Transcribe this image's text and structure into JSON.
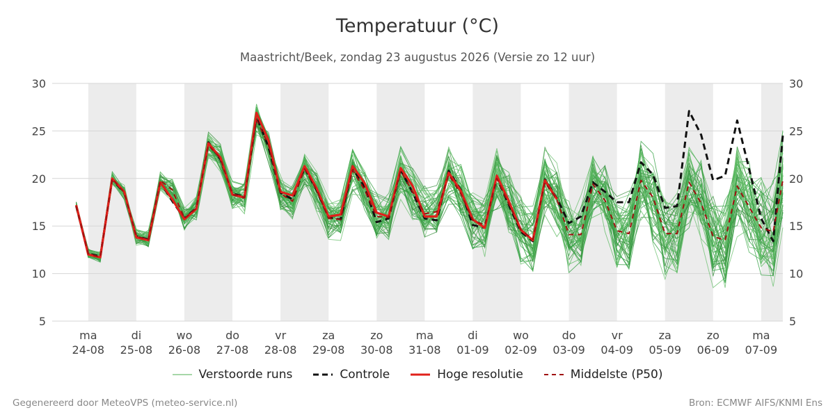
{
  "title": "Temperatuur (°C)",
  "subtitle": "Maastricht/Beek, zondag 23 augustus 2026 (Versie zo 12 uur)",
  "footer_left": "Gegenereerd door MeteoVPS (meteo-service.nl)",
  "footer_right": "Bron: ECMWF AIFS/KNMI Ens",
  "legend": [
    {
      "label": "Verstoorde runs",
      "color": "#4caf50",
      "style": "thin-solid"
    },
    {
      "label": "Controle",
      "color": "#111111",
      "style": "dashed"
    },
    {
      "label": "Hoge resolutie",
      "color": "#e0201b",
      "style": "solid"
    },
    {
      "label": "Middelste (P50)",
      "color": "#a01010",
      "style": "dashed"
    }
  ],
  "chart_data": {
    "type": "line",
    "ylim": [
      5,
      30
    ],
    "yticks": [
      5,
      10,
      15,
      20,
      25,
      30
    ],
    "grid": true,
    "legend_position": "bottom",
    "x_unit": "day-since-start",
    "xlim": [
      -0.75,
      14.45
    ],
    "day_ticks": [
      {
        "day": "ma",
        "date": "24-08"
      },
      {
        "day": "di",
        "date": "25-08"
      },
      {
        "day": "wo",
        "date": "26-08"
      },
      {
        "day": "do",
        "date": "27-08"
      },
      {
        "day": "vr",
        "date": "28-08"
      },
      {
        "day": "za",
        "date": "29-08"
      },
      {
        "day": "zo",
        "date": "30-08"
      },
      {
        "day": "ma",
        "date": "31-08"
      },
      {
        "day": "di",
        "date": "01-09"
      },
      {
        "day": "wo",
        "date": "02-09"
      },
      {
        "day": "do",
        "date": "03-09"
      },
      {
        "day": "vr",
        "date": "04-09"
      },
      {
        "day": "za",
        "date": "05-09"
      },
      {
        "day": "zo",
        "date": "06-09"
      },
      {
        "day": "ma",
        "date": "07-09"
      }
    ],
    "weekend_shading_days": [
      0,
      2,
      4,
      6,
      8,
      10,
      12,
      14
    ],
    "x": [
      -0.25,
      0,
      0.25,
      0.5,
      0.75,
      1,
      1.25,
      1.5,
      1.75,
      2,
      2.25,
      2.5,
      2.75,
      3,
      3.25,
      3.5,
      3.75,
      4,
      4.25,
      4.5,
      4.75,
      5,
      5.25,
      5.5,
      5.75,
      6,
      6.25,
      6.5,
      6.75,
      7,
      7.25,
      7.5,
      7.75,
      8,
      8.25,
      8.5,
      8.75,
      9,
      9.25,
      9.5,
      9.75,
      10,
      10.25,
      10.5,
      10.75,
      11,
      11.25,
      11.5,
      11.75,
      12,
      12.25,
      12.5,
      12.75,
      13,
      13.25,
      13.5,
      13.75,
      14,
      14.25,
      14.45
    ],
    "series": [
      {
        "name": "Hoge resolutie",
        "values": [
          17.2,
          12.0,
          11.7,
          20.0,
          18.6,
          13.8,
          13.5,
          19.6,
          17.8,
          15.7,
          16.8,
          23.7,
          22.2,
          18.3,
          18.0,
          26.9,
          24.0,
          18.6,
          18.2,
          21.3,
          19.0,
          16.0,
          16.2,
          21.3,
          19.5,
          16.4,
          16.0,
          21.1,
          19.2,
          16.0,
          16.0,
          20.6,
          18.7,
          15.7,
          14.8,
          20.3,
          17.6,
          14.6,
          13.5,
          19.8,
          17.8,
          null,
          null,
          null,
          null,
          null,
          null,
          null,
          null,
          null,
          null,
          null,
          null,
          null,
          null,
          null,
          null,
          null,
          null,
          null
        ]
      },
      {
        "name": "Controle",
        "values": [
          17.1,
          12.1,
          11.8,
          19.9,
          18.5,
          13.9,
          13.6,
          19.6,
          17.6,
          15.8,
          16.9,
          23.8,
          22.0,
          18.4,
          18.1,
          26.5,
          23.3,
          18.5,
          17.8,
          21.1,
          18.8,
          15.9,
          15.7,
          21.1,
          19.1,
          15.4,
          15.8,
          20.9,
          18.5,
          15.8,
          15.6,
          20.8,
          18.8,
          15.1,
          14.8,
          20.1,
          17.2,
          14.4,
          13.4,
          19.9,
          17.9,
          15.3,
          16.0,
          19.6,
          18.6,
          17.5,
          17.5,
          21.7,
          20.4,
          16.9,
          17.1,
          27.1,
          24.6,
          19.8,
          20.3,
          26.1,
          21.0,
          15.8,
          13.4,
          24.5
        ]
      },
      {
        "name": "Middelste (P50)",
        "values": [
          17.1,
          12.1,
          11.7,
          20.0,
          18.5,
          13.9,
          13.6,
          19.8,
          18.8,
          15.8,
          16.9,
          23.5,
          22.1,
          18.3,
          18.0,
          26.2,
          23.5,
          18.4,
          17.6,
          21.0,
          18.8,
          15.8,
          15.7,
          20.9,
          18.8,
          16.0,
          15.9,
          20.8,
          18.6,
          16.3,
          16.5,
          20.4,
          18.4,
          15.6,
          15.1,
          20.0,
          17.3,
          14.6,
          13.6,
          19.6,
          17.8,
          14.1,
          14.1,
          19.4,
          17.7,
          14.5,
          14.2,
          19.8,
          18.0,
          14.2,
          14.2,
          19.6,
          17.4,
          13.9,
          13.5,
          19.2,
          17.0,
          14.8,
          14.4,
          19.8
        ]
      }
    ]
  }
}
